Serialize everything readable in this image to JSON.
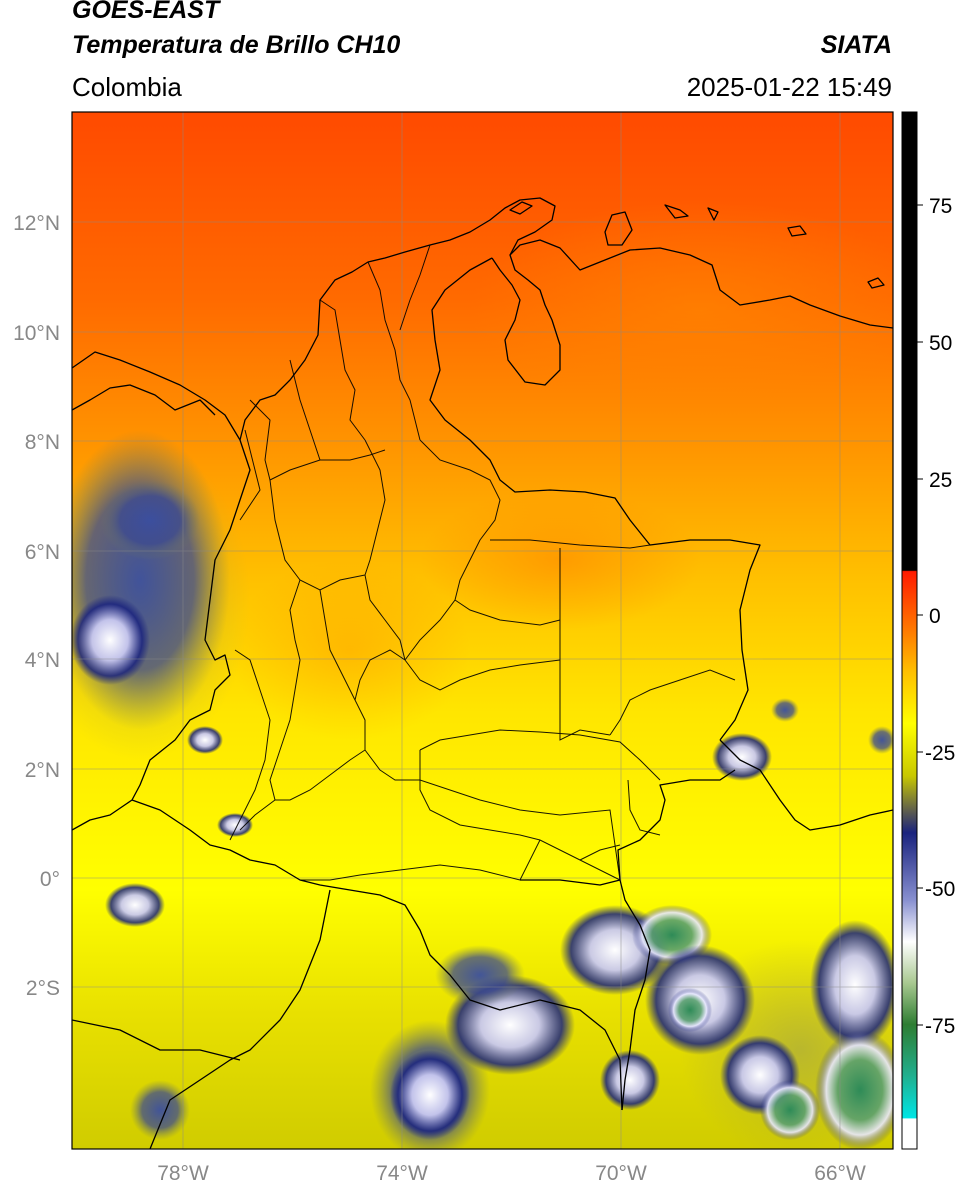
{
  "header": {
    "title_line1": "GOES-EAST",
    "title_line2": "Temperatura de Brillo CH10",
    "credit": "SIATA",
    "region": "Colombia",
    "timestamp": "2025-01-22 15:49"
  },
  "map": {
    "lat_ticks": [
      "12°N",
      "10°N",
      "8°N",
      "6°N",
      "4°N",
      "2°N",
      "0°",
      "2°S"
    ],
    "lon_ticks": [
      "78°W",
      "74°W",
      "70°W",
      "66°W"
    ],
    "colors": {
      "warm_red": "#ff3a00",
      "orange": "#ff9900",
      "yellow": "#ffff00",
      "olive": "#c8c800",
      "navy": "#1a237e",
      "cloud_white": "#f0f0f8",
      "green": "#2e8b57"
    }
  },
  "colorbar": {
    "ticks": [
      "75",
      "50",
      "25",
      "0",
      "-25",
      "-50",
      "-75"
    ],
    "colors": [
      "#000000",
      "#ff0000",
      "#ff8c00",
      "#ffff00",
      "#808000",
      "#1a237e",
      "#ffffff",
      "#2e7d32",
      "#00e5e5"
    ]
  }
}
